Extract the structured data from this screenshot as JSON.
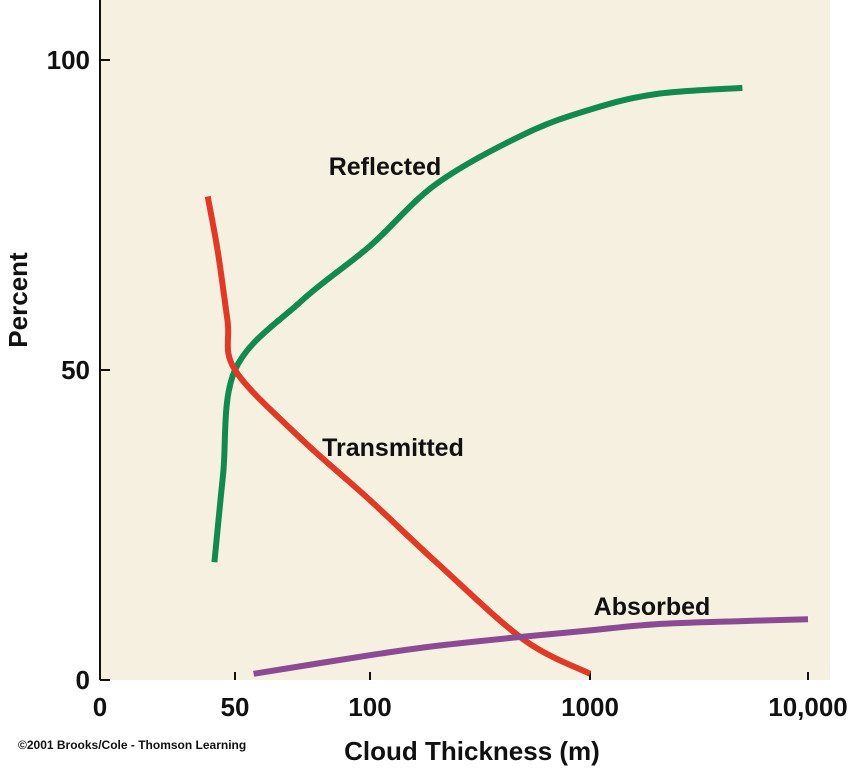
{
  "chart_data": {
    "type": "line",
    "title": "",
    "xlabel": "Cloud Thickness (m)",
    "ylabel": "Percent",
    "x_ticks": [
      {
        "value": 0,
        "label": "0"
      },
      {
        "value": 50,
        "label": "50"
      },
      {
        "value": 100,
        "label": "100"
      },
      {
        "value": 1000,
        "label": "1000"
      },
      {
        "value": 10000,
        "label": "10,000"
      }
    ],
    "y_ticks": [
      {
        "value": 0,
        "label": "0"
      },
      {
        "value": 50,
        "label": "50"
      },
      {
        "value": 100,
        "label": "100"
      }
    ],
    "ylim": [
      0,
      100
    ],
    "x_scale": "log-like",
    "grid": false,
    "background": "#f5f0e0",
    "series": [
      {
        "name": "Reflected",
        "color": "#12894f",
        "x": [
          27,
          35,
          50,
          70,
          100,
          200,
          500,
          1000,
          2000,
          5000
        ],
        "y": [
          19,
          33,
          50,
          61,
          70,
          80,
          88,
          92,
          94.5,
          95.5
        ]
      },
      {
        "name": "Transmitted",
        "color": "#e03a26",
        "x": [
          22,
          30,
          40,
          50,
          70,
          100,
          200,
          500,
          1000
        ],
        "y": [
          78,
          69,
          58,
          50,
          39,
          29,
          19,
          6.5,
          1
        ]
      },
      {
        "name": "Absorbed",
        "color": "#8b4a93",
        "x": [
          55,
          100,
          200,
          500,
          1000,
          2000,
          5000,
          10000
        ],
        "y": [
          1,
          4,
          5.5,
          7,
          8,
          9,
          9.5,
          9.8
        ]
      }
    ]
  },
  "credit": "©2001 Brooks/Cole - Thomson Learning"
}
